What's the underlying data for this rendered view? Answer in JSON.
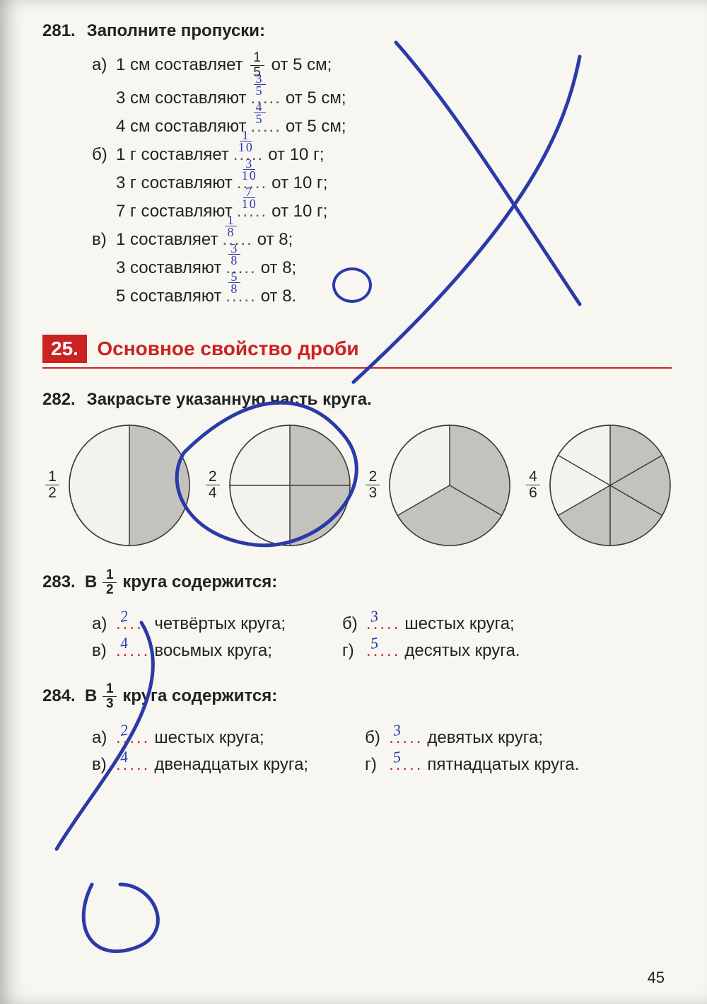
{
  "page_number": "45",
  "problem281": {
    "number": "281.",
    "title": "Заполните пропуски:",
    "groups": [
      {
        "label": "а)",
        "lines": [
          {
            "pre": "1 см составляет",
            "frac": {
              "n": "1",
              "d": "5"
            },
            "post": "от 5 см;",
            "printed": true
          },
          {
            "pre": "3 см составляют",
            "hand": {
              "n": "3",
              "d": "5"
            },
            "post": "от 5 см;"
          },
          {
            "pre": "4 см составляют",
            "hand": {
              "n": "4",
              "d": "5"
            },
            "post": "от 5 см;"
          }
        ]
      },
      {
        "label": "б)",
        "lines": [
          {
            "pre": "1 г составляет",
            "hand": {
              "n": "1",
              "d": "10"
            },
            "post": "от 10 г;"
          },
          {
            "pre": "3 г составляют",
            "hand": {
              "n": "3",
              "d": "10"
            },
            "post": "от 10 г;"
          },
          {
            "pre": "7 г составляют",
            "hand": {
              "n": "7",
              "d": "10"
            },
            "post": "от 10 г;"
          }
        ]
      },
      {
        "label": "в)",
        "lines": [
          {
            "pre": "1 составляет",
            "hand": {
              "n": "1",
              "d": "8"
            },
            "post": "от 8;"
          },
          {
            "pre": "3 составляют",
            "hand": {
              "n": "3",
              "d": "8"
            },
            "post": "от 8;"
          },
          {
            "pre": "5 составляют",
            "hand": {
              "n": "5",
              "d": "8"
            },
            "post": "от 8."
          }
        ]
      }
    ]
  },
  "section25": {
    "number": "25.",
    "title": "Основное свойство дроби"
  },
  "problem282": {
    "number": "282.",
    "title": "Закрасьте указанную часть круга.",
    "circles": [
      {
        "frac": {
          "n": "1",
          "d": "2"
        },
        "sectors": 2,
        "shaded": [
          0
        ],
        "radius": 85,
        "colors": {
          "line": "#3a3a3a",
          "fill": "#c4c2bc",
          "bg": "#f4f2ed"
        }
      },
      {
        "frac": {
          "n": "2",
          "d": "4"
        },
        "sectors": 4,
        "shaded": [
          0,
          1
        ],
        "radius": 85,
        "colors": {
          "line": "#3a3a3a",
          "fill": "#c4c2bc",
          "bg": "#f4f2ed"
        }
      },
      {
        "frac": {
          "n": "2",
          "d": "3"
        },
        "sectors": 3,
        "shaded": [
          0,
          1
        ],
        "radius": 85,
        "colors": {
          "line": "#3a3a3a",
          "fill": "#c4c2bc",
          "bg": "#f4f2ed"
        },
        "start": -90
      },
      {
        "frac": {
          "n": "4",
          "d": "6"
        },
        "sectors": 6,
        "shaded": [
          0,
          1,
          2,
          3
        ],
        "radius": 85,
        "colors": {
          "line": "#3a3a3a",
          "fill": "#c4c2bc",
          "bg": "#f4f2ed"
        },
        "start": -90
      }
    ]
  },
  "problem283": {
    "number": "283.",
    "title_pre": "В ",
    "title_frac": {
      "n": "1",
      "d": "2"
    },
    "title_post": " круга содержится:",
    "left": [
      {
        "label": "а)",
        "hand": "2",
        "text": "четвёртых круга;"
      },
      {
        "label": "в)",
        "hand": "4",
        "text": "восьмых круга;"
      }
    ],
    "right": [
      {
        "label": "б)",
        "hand": "3",
        "text": "шестых круга;"
      },
      {
        "label": "г)",
        "hand": "5",
        "text": "десятых круга."
      }
    ]
  },
  "problem284": {
    "number": "284.",
    "title_pre": "В ",
    "title_frac": {
      "n": "1",
      "d": "3"
    },
    "title_post": " круга содержится:",
    "left": [
      {
        "label": "а)",
        "hand": "2",
        "text": "шестых круга;"
      },
      {
        "label": "в)",
        "hand": "4",
        "text": "двенадцатых круга;"
      }
    ],
    "right": [
      {
        "label": "б)",
        "hand": "3",
        "text": "девятых круга;"
      },
      {
        "label": "г)",
        "hand": "5",
        "text": "пятнадцатых круга."
      }
    ]
  },
  "hand_color": "#2a3aa8",
  "red_color": "#c22"
}
